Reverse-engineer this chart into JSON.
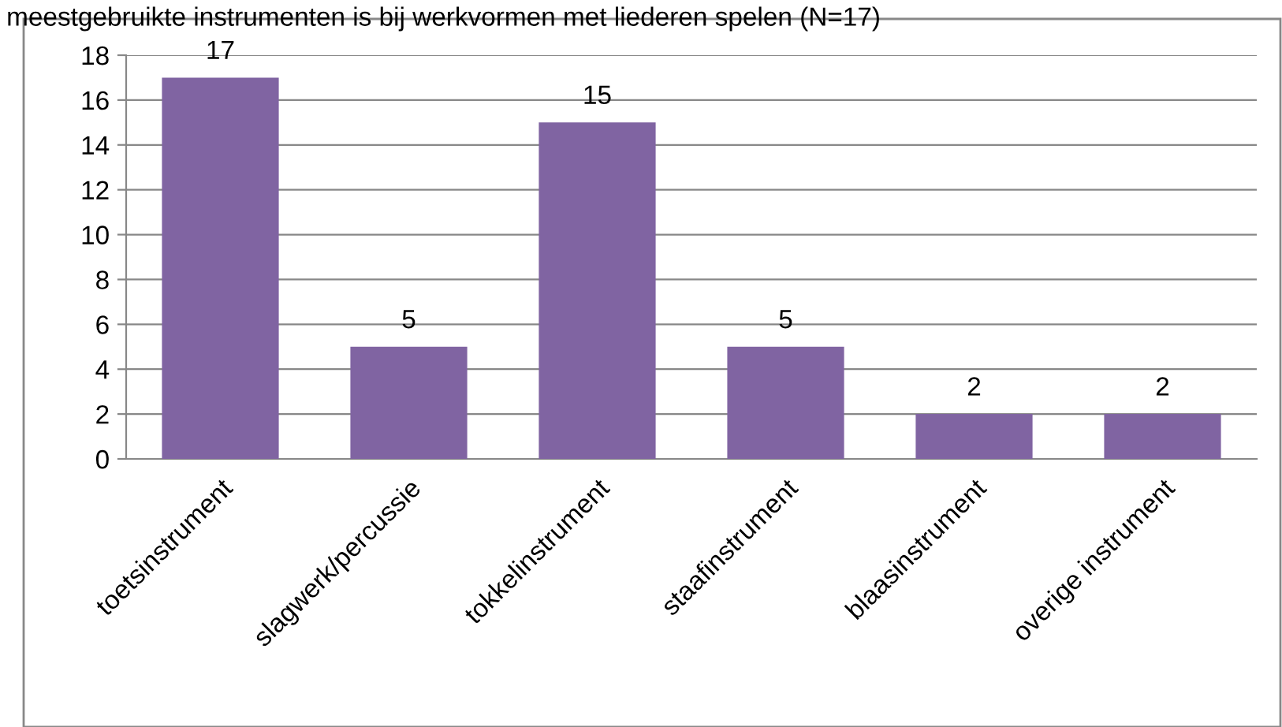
{
  "chart_data": {
    "type": "bar",
    "title": "meestgebruikte instrumenten is bij werkvormen met liederen spelen (N=17)",
    "categories": [
      "toetsinstrument",
      "slagwerk/percussie",
      "tokkelinstrument",
      "staafinstrument",
      "blaasinstrument",
      "overige instrument"
    ],
    "values": [
      17,
      5,
      15,
      5,
      2,
      2
    ],
    "color": "#8064a2",
    "ylim": [
      0,
      18
    ],
    "yticks": [
      0,
      2,
      4,
      6,
      8,
      10,
      12,
      14,
      16,
      18
    ],
    "grid": "y",
    "data_labels": true
  }
}
